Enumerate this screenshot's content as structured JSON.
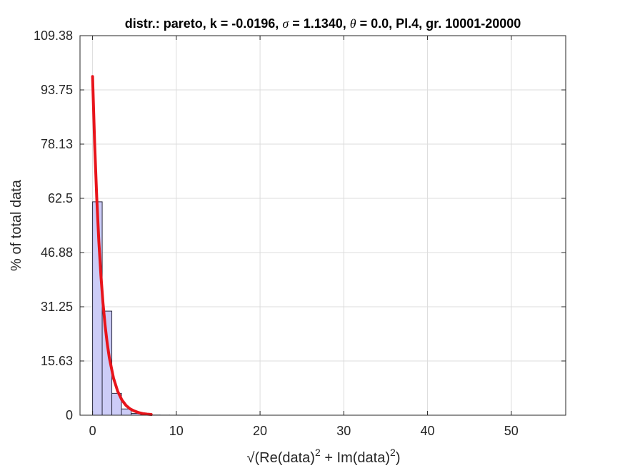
{
  "chart_data": {
    "type": "bar",
    "title": {
      "prefix": "distr.: pareto, k = -0.0196,  ",
      "sigma_symbol": "σ",
      "sigma_text": " = 1.1340,  ",
      "theta_symbol": "θ",
      "theta_text": " = 0.0, Pl.4, gr. 10001-20000"
    },
    "ylabel": "% of total data",
    "xlabel": {
      "sqrt": "√",
      "part1": "(Re(data)",
      "sup1": "2",
      "part2": " + Im(data)",
      "sup2": "2",
      "part3": ")"
    },
    "xlim": [
      -1.5,
      56.5
    ],
    "ylim": [
      0,
      109.38
    ],
    "xticks": [
      0,
      10,
      20,
      30,
      40,
      50
    ],
    "xtick_labels": [
      "0",
      "10",
      "20",
      "30",
      "40",
      "50"
    ],
    "yticks": [
      0,
      15.63,
      31.25,
      46.88,
      62.5,
      78.13,
      93.75,
      109.38
    ],
    "ytick_labels": [
      "0",
      "15.63",
      "31.25",
      "46.88",
      "62.5",
      "78.13",
      "93.75",
      "109.38"
    ],
    "grid": true,
    "bin_width": 1.15,
    "bars": {
      "bin_left": [
        0,
        1.15,
        2.3,
        3.45,
        4.6,
        5.75,
        6.9,
        8.05,
        9.2,
        10.35,
        11.5,
        12.65,
        13.8,
        14.95,
        16.1,
        17.25,
        18.4,
        19.55,
        20.7,
        21.85,
        23.0,
        24.15,
        25.3,
        26.45,
        27.6,
        28.75,
        29.9,
        31.05,
        32.2,
        33.35,
        34.5,
        35.65,
        36.8,
        37.95,
        39.1,
        40.25,
        41.4,
        42.55,
        43.7,
        44.85,
        46.0,
        47.15,
        48.3,
        49.45,
        50.6,
        51.75,
        52.9,
        54.05
      ],
      "values": [
        61.5,
        30.0,
        6.3,
        1.8,
        0.5,
        0.15,
        0.05,
        0.03,
        0.02,
        0.01,
        0.01,
        0,
        0,
        0,
        0,
        0,
        0,
        0,
        0,
        0,
        0,
        0,
        0,
        0,
        0,
        0,
        0,
        0,
        0,
        0,
        0,
        0,
        0,
        0,
        0,
        0,
        0,
        0,
        0,
        0,
        0,
        0,
        0,
        0,
        0,
        0,
        0,
        0
      ]
    },
    "fit_curve": {
      "x": [
        0,
        0.25,
        0.5,
        0.75,
        1.0,
        1.25,
        1.5,
        1.75,
        2.0,
        2.5,
        3.0,
        3.5,
        4.0,
        4.5,
        5.0,
        5.5,
        6.0,
        6.5,
        7.0
      ],
      "y": [
        97.6,
        78.2,
        62.6,
        50.1,
        40.2,
        32.2,
        25.8,
        20.7,
        16.6,
        10.7,
        6.9,
        4.4,
        2.8,
        1.8,
        1.2,
        0.75,
        0.48,
        0.31,
        0.2
      ]
    },
    "colors": {
      "bar_fill": "#ccccf7",
      "bar_edge": "#2b2b40",
      "fit_line": "#e8141b",
      "grid": "#dcdcdc",
      "axis": "#262626"
    }
  }
}
